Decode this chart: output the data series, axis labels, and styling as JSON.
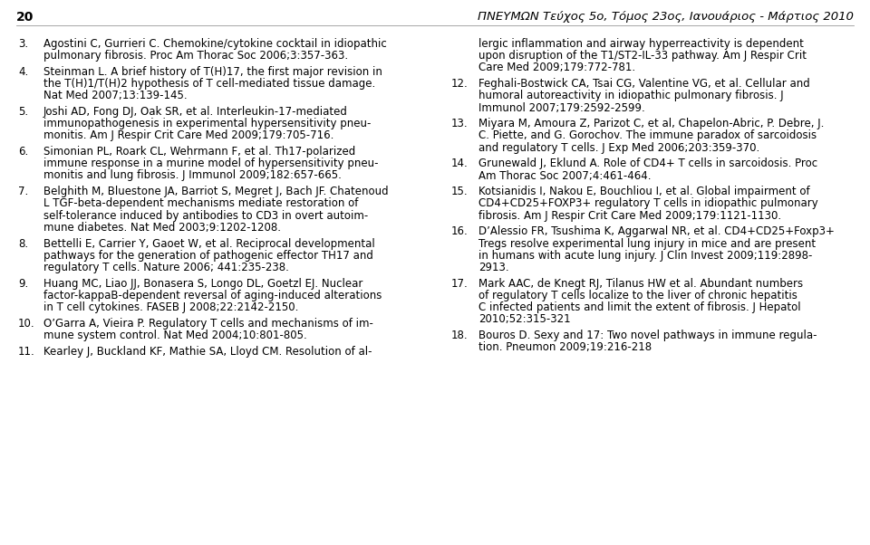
{
  "background_color": "#ffffff",
  "page_number": "20",
  "header_right": "ΠΝΕΥΜΩΝ Τεύχος 5ο, Τόμος 23ος, Ιανουάριος - Μάρτιος 2010",
  "font_size_body": 8.5,
  "font_size_header": 9.5,
  "text_color": "#000000",
  "left_refs": [
    {
      "num": "3.",
      "lines": [
        "Agostini C, Gurrieri C. Chemokine/cytokine cocktail in idiopathic",
        "pulmonary fibrosis. Proc Am Thorac Soc 2006;3:357-363."
      ]
    },
    {
      "num": "4.",
      "lines": [
        "Steinman L. A brief history of T(H)17, the first major revision in",
        "the T(H)1/T(H)2 hypothesis of T cell-mediated tissue damage.",
        "Nat Med 2007;13:139-145."
      ]
    },
    {
      "num": "5.",
      "lines": [
        "Joshi AD, Fong DJ, Oak SR, et al. Interleukin-17-mediated",
        "immunopathogenesis in experimental hypersensitivity pneu-",
        "monitis. Am J Respir Crit Care Med 2009;179:705-716."
      ]
    },
    {
      "num": "6.",
      "lines": [
        "Simonian PL, Roark CL, Wehrmann F, et al. Th17-polarized",
        "immune response in a murine model of hypersensitivity pneu-",
        "monitis and lung fibrosis. J Immunol 2009;182:657-665."
      ]
    },
    {
      "num": "7.",
      "lines": [
        "Belghith M, Bluestone JA, Barriot S, Megret J, Bach JF. Chatenoud",
        "L TGF-beta-dependent mechanisms mediate restoration of",
        "self-tolerance induced by antibodies to CD3 in overt autoim-",
        "mune diabetes. Nat Med 2003;9:1202-1208."
      ]
    },
    {
      "num": "8.",
      "lines": [
        "Bettelli E, Carrier Y, Gaoet W, et al. Reciprocal developmental",
        "pathways for the generation of pathogenic effector TH17 and",
        "regulatory T cells. Nature 2006; 441:235-238."
      ]
    },
    {
      "num": "9.",
      "lines": [
        "Huang MC, Liao JJ, Bonasera S, Longo DL, Goetzl EJ. Nuclear",
        "factor-kappaB-dependent reversal of aging-induced alterations",
        "in T cell cytokines. FASEB J 2008;22:2142-2150."
      ]
    },
    {
      "num": "10.",
      "lines": [
        "O’Garra A, Vieira P. Regulatory T cells and mechanisms of im-",
        "mune system control. Nat Med 2004;10:801-805."
      ]
    },
    {
      "num": "11.",
      "lines": [
        "Kearley J, Buckland KF, Mathie SA, Lloyd CM. Resolution of al-"
      ]
    }
  ],
  "right_refs": [
    {
      "num": null,
      "lines": [
        "lergic inflammation and airway hyperreactivity is dependent",
        "upon disruption of the T1/ST2-IL-33 pathway. Am J Respir Crit",
        "Care Med 2009;179:772-781."
      ]
    },
    {
      "num": "12.",
      "lines": [
        "Feghali-Bostwick CA, Tsai CG, Valentine VG, et al. Cellular and",
        "humoral autoreactivity in idiopathic pulmonary fibrosis. J",
        "Immunol 2007;179:2592-2599."
      ]
    },
    {
      "num": "13.",
      "lines": [
        "Miyara M, Amoura Z, Parizot C, et al, Chapelon-Abric, P. Debre, J.",
        "C. Piette, and G. Gorochov. The immune paradox of sarcoidosis",
        "and regulatory T cells. J Exp Med 2006;203:359-370."
      ]
    },
    {
      "num": "14.",
      "lines": [
        "Grunewald J, Eklund A. Role of CD4+ T cells in sarcoidosis. Proc",
        "Am Thorac Soc 2007;4:461-464."
      ]
    },
    {
      "num": "15.",
      "lines": [
        "Kotsianidis I, Nakou E, Bouchliou I, et al. Global impairment of",
        "CD4+CD25+FOXP3+ regulatory T cells in idiopathic pulmonary",
        "fibrosis. Am J Respir Crit Care Med 2009;179:1121-1130."
      ]
    },
    {
      "num": "16.",
      "lines": [
        "D’Alessio FR, Tsushima K, Aggarwal NR, et al. CD4+CD25+Foxp3+",
        "Tregs resolve experimental lung injury in mice and are present",
        "in humans with acute lung injury. J Clin Invest 2009;119:2898-",
        "2913."
      ]
    },
    {
      "num": "17.",
      "lines": [
        "Mark AAC, de Knegt RJ, Tilanus HW et al. Abundant numbers",
        "of regulatory T cells localize to the liver of chronic hepatitis",
        "C infected patients and limit the extent of fibrosis. J Hepatol",
        "2010;52:315-321"
      ]
    },
    {
      "num": "18.",
      "lines": [
        "Bouros D. Sexy and 17: Two novel pathways in immune regula-",
        "tion. Pneumon 2009;19:216-218"
      ]
    }
  ]
}
